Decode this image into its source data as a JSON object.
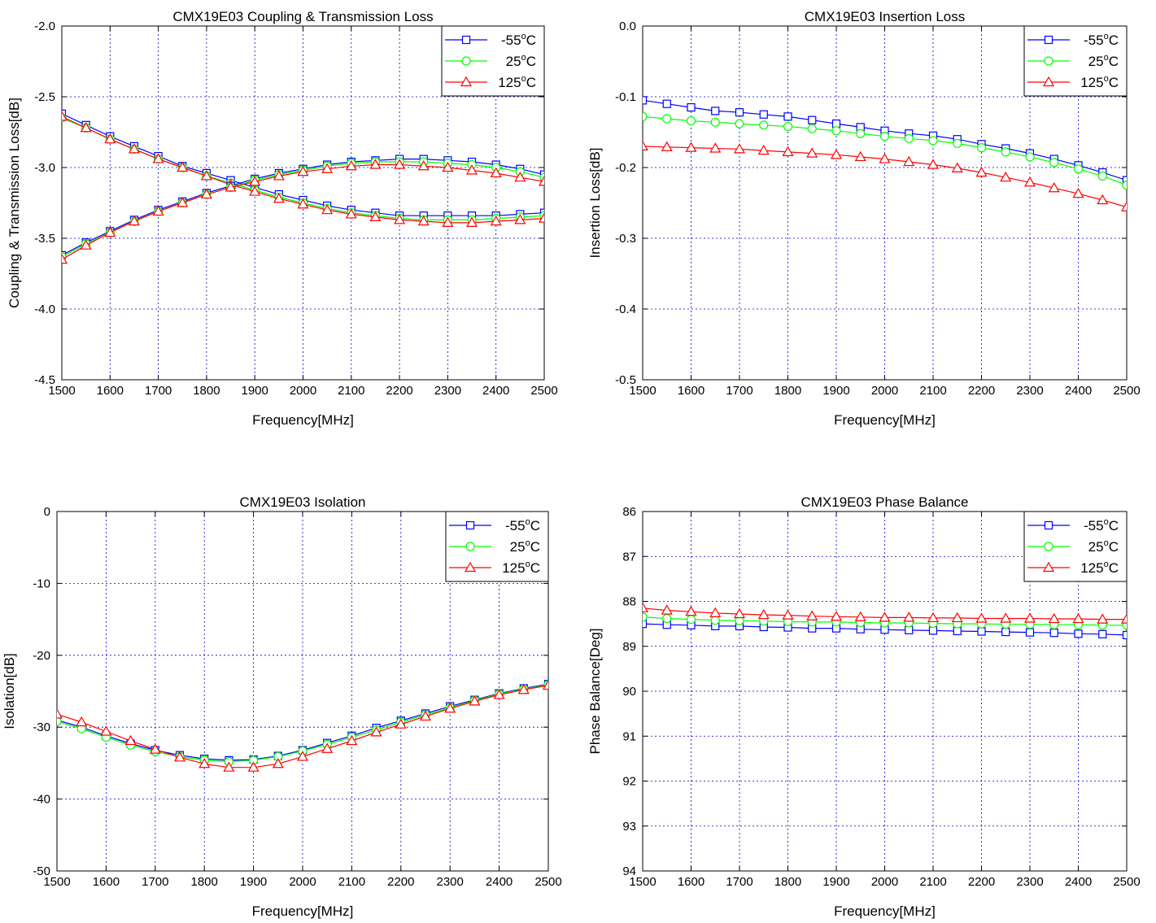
{
  "chart_data": [
    {
      "type": "line",
      "title": "CMX19E03 Coupling & Transmission Loss",
      "xlabel": "Frequency[MHz]",
      "ylabel": "Coupling & Transmission Loss[dB]",
      "xlim": [
        1500,
        2500
      ],
      "ylim": [
        -4.5,
        -2.0
      ],
      "x_ticks": [
        1500,
        1600,
        1700,
        1800,
        1900,
        2000,
        2100,
        2200,
        2300,
        2400,
        2500
      ],
      "y_ticks": [
        -2.0,
        -2.5,
        -3.0,
        -3.5,
        -4.0,
        -4.5
      ],
      "y_tick_labels": [
        "-2.0",
        "-2.5",
        "-3.0",
        "-3.5",
        "-4.0",
        "-4.5"
      ],
      "grid": true,
      "legend_position": "top-right",
      "x": [
        1500,
        1550,
        1600,
        1650,
        1700,
        1750,
        1800,
        1850,
        1900,
        1950,
        2000,
        2050,
        2100,
        2150,
        2200,
        2250,
        2300,
        2350,
        2400,
        2450,
        2500
      ],
      "series": [
        {
          "name": "-55°C",
          "label_main": "-55",
          "color": "#0000ff",
          "marker": "square",
          "curve": "coupling",
          "values": [
            -2.62,
            -2.7,
            -2.78,
            -2.85,
            -2.92,
            -2.99,
            -3.04,
            -3.09,
            -3.14,
            -3.19,
            -3.23,
            -3.27,
            -3.3,
            -3.32,
            -3.34,
            -3.34,
            -3.34,
            -3.34,
            -3.34,
            -3.33,
            -3.32
          ]
        },
        {
          "name": "25°C",
          "label_main": "25",
          "color": "#00ff00",
          "marker": "circle",
          "curve": "coupling",
          "values": [
            -2.65,
            -2.72,
            -2.8,
            -2.87,
            -2.94,
            -3.0,
            -3.06,
            -3.11,
            -3.16,
            -3.21,
            -3.25,
            -3.29,
            -3.32,
            -3.34,
            -3.36,
            -3.37,
            -3.37,
            -3.37,
            -3.36,
            -3.35,
            -3.34
          ]
        },
        {
          "name": "125°C",
          "label_main": "125",
          "color": "#ff0000",
          "marker": "triangle",
          "curve": "coupling",
          "values": [
            -2.64,
            -2.72,
            -2.8,
            -2.87,
            -2.94,
            -3.0,
            -3.06,
            -3.12,
            -3.17,
            -3.22,
            -3.26,
            -3.3,
            -3.33,
            -3.35,
            -3.37,
            -3.38,
            -3.39,
            -3.39,
            -3.38,
            -3.37,
            -3.36
          ]
        },
        {
          "name": "-55°C",
          "curve": "transmission",
          "color": "#0000ff",
          "marker": "square",
          "values": [
            -3.62,
            -3.53,
            -3.45,
            -3.37,
            -3.3,
            -3.24,
            -3.18,
            -3.13,
            -3.08,
            -3.04,
            -3.01,
            -2.98,
            -2.96,
            -2.95,
            -2.94,
            -2.94,
            -2.95,
            -2.96,
            -2.98,
            -3.01,
            -3.05
          ]
        },
        {
          "name": "25°C",
          "curve": "transmission",
          "color": "#00ff00",
          "marker": "circle",
          "values": [
            -3.63,
            -3.54,
            -3.46,
            -3.38,
            -3.31,
            -3.25,
            -3.19,
            -3.14,
            -3.09,
            -3.05,
            -3.02,
            -2.99,
            -2.97,
            -2.96,
            -2.96,
            -2.96,
            -2.97,
            -2.98,
            -3.0,
            -3.03,
            -3.07
          ]
        },
        {
          "name": "125°C",
          "curve": "transmission",
          "color": "#ff0000",
          "marker": "triangle",
          "values": [
            -3.65,
            -3.55,
            -3.46,
            -3.38,
            -3.31,
            -3.25,
            -3.19,
            -3.14,
            -3.1,
            -3.06,
            -3.03,
            -3.01,
            -2.99,
            -2.98,
            -2.98,
            -2.99,
            -3.0,
            -3.02,
            -3.04,
            -3.07,
            -3.1
          ]
        }
      ]
    },
    {
      "type": "line",
      "title": "CMX19E03 Insertion Loss",
      "xlabel": "Frequency[MHz]",
      "ylabel": "Insertion Loss[dB]",
      "xlim": [
        1500,
        2500
      ],
      "ylim": [
        -0.5,
        0.0
      ],
      "x_ticks": [
        1500,
        1600,
        1700,
        1800,
        1900,
        2000,
        2100,
        2200,
        2300,
        2400,
        2500
      ],
      "y_ticks": [
        0.0,
        -0.1,
        -0.2,
        -0.3,
        -0.4,
        -0.5
      ],
      "y_tick_labels": [
        "0.0",
        "-0.1",
        "-0.2",
        "-0.3",
        "-0.4",
        "-0.5"
      ],
      "grid": true,
      "legend_position": "top-right",
      "x": [
        1500,
        1550,
        1600,
        1650,
        1700,
        1750,
        1800,
        1850,
        1900,
        1950,
        2000,
        2050,
        2100,
        2150,
        2200,
        2250,
        2300,
        2350,
        2400,
        2450,
        2500
      ],
      "series": [
        {
          "name": "-55°C",
          "label_main": "-55",
          "color": "#0000ff",
          "marker": "square",
          "values": [
            -0.105,
            -0.11,
            -0.115,
            -0.12,
            -0.122,
            -0.125,
            -0.128,
            -0.133,
            -0.138,
            -0.143,
            -0.148,
            -0.152,
            -0.155,
            -0.16,
            -0.167,
            -0.173,
            -0.18,
            -0.188,
            -0.197,
            -0.207,
            -0.218
          ]
        },
        {
          "name": "25°C",
          "label_main": "25",
          "color": "#00ff00",
          "marker": "circle",
          "values": [
            -0.128,
            -0.131,
            -0.134,
            -0.136,
            -0.138,
            -0.14,
            -0.142,
            -0.145,
            -0.148,
            -0.152,
            -0.156,
            -0.159,
            -0.162,
            -0.166,
            -0.172,
            -0.178,
            -0.185,
            -0.193,
            -0.202,
            -0.212,
            -0.225
          ]
        },
        {
          "name": "125°C",
          "label_main": "125",
          "color": "#ff0000",
          "marker": "triangle",
          "values": [
            -0.17,
            -0.171,
            -0.172,
            -0.173,
            -0.174,
            -0.176,
            -0.178,
            -0.18,
            -0.182,
            -0.185,
            -0.188,
            -0.192,
            -0.196,
            -0.201,
            -0.207,
            -0.214,
            -0.221,
            -0.229,
            -0.237,
            -0.246,
            -0.256
          ]
        }
      ]
    },
    {
      "type": "line",
      "title": "CMX19E03 Isolation",
      "xlabel": "Frequency[MHz]",
      "ylabel": "Isolation[dB]",
      "xlim": [
        1500,
        2500
      ],
      "ylim": [
        -50,
        0
      ],
      "x_ticks": [
        1500,
        1600,
        1700,
        1800,
        1900,
        2000,
        2100,
        2200,
        2300,
        2400,
        2500
      ],
      "y_ticks": [
        0,
        -10,
        -20,
        -30,
        -40,
        -50
      ],
      "y_tick_labels": [
        "0",
        "-10",
        "-20",
        "-30",
        "-40",
        "-50"
      ],
      "grid": true,
      "legend_position": "top-right",
      "x": [
        1500,
        1550,
        1600,
        1650,
        1700,
        1750,
        1800,
        1850,
        1900,
        1950,
        2000,
        2050,
        2100,
        2150,
        2200,
        2250,
        2300,
        2350,
        2400,
        2450,
        2500
      ],
      "series": [
        {
          "name": "-55°C",
          "label_main": "-55",
          "color": "#0000ff",
          "marker": "square",
          "values": [
            -29.0,
            -30.0,
            -31.2,
            -32.3,
            -33.2,
            -33.9,
            -34.4,
            -34.6,
            -34.5,
            -34.0,
            -33.2,
            -32.2,
            -31.2,
            -30.1,
            -29.1,
            -28.1,
            -27.1,
            -26.2,
            -25.3,
            -24.6,
            -24.0
          ]
        },
        {
          "name": "25°C",
          "label_main": "25",
          "color": "#00ff00",
          "marker": "circle",
          "values": [
            -29.2,
            -30.2,
            -31.4,
            -32.5,
            -33.4,
            -34.1,
            -34.6,
            -34.8,
            -34.6,
            -34.1,
            -33.3,
            -32.4,
            -31.4,
            -30.4,
            -29.3,
            -28.3,
            -27.3,
            -26.3,
            -25.4,
            -24.7,
            -24.1
          ]
        },
        {
          "name": "125°C",
          "label_main": "125",
          "color": "#ff0000",
          "marker": "triangle",
          "values": [
            -28.2,
            -29.3,
            -30.6,
            -31.9,
            -33.1,
            -34.2,
            -35.1,
            -35.6,
            -35.6,
            -35.1,
            -34.1,
            -33.0,
            -31.9,
            -30.7,
            -29.6,
            -28.5,
            -27.4,
            -26.4,
            -25.5,
            -24.8,
            -24.2
          ]
        }
      ]
    },
    {
      "type": "line",
      "title": "CMX19E03 Phase Balance",
      "xlabel": "Frequency[MHz]",
      "ylabel": "Phase Balance[Deg]",
      "xlim": [
        1500,
        2500
      ],
      "ylim": [
        94,
        86
      ],
      "x_ticks": [
        1500,
        1600,
        1700,
        1800,
        1900,
        2000,
        2100,
        2200,
        2300,
        2400,
        2500
      ],
      "y_ticks": [
        86,
        87,
        88,
        89,
        90,
        91,
        92,
        93,
        94
      ],
      "y_tick_labels": [
        "86",
        "87",
        "88",
        "89",
        "90",
        "91",
        "92",
        "93",
        "94"
      ],
      "grid": true,
      "legend_position": "top-right",
      "x": [
        1500,
        1550,
        1600,
        1650,
        1700,
        1750,
        1800,
        1850,
        1900,
        1950,
        2000,
        2050,
        2100,
        2150,
        2200,
        2250,
        2300,
        2350,
        2400,
        2450,
        2500
      ],
      "series": [
        {
          "name": "-55°C",
          "label_main": "-55",
          "color": "#0000ff",
          "marker": "square",
          "values": [
            88.5,
            88.52,
            88.53,
            88.55,
            88.55,
            88.57,
            88.58,
            88.6,
            88.6,
            88.62,
            88.63,
            88.64,
            88.65,
            88.66,
            88.67,
            88.68,
            88.69,
            88.7,
            88.72,
            88.73,
            88.75
          ]
        },
        {
          "name": "25°C",
          "label_main": "25",
          "color": "#00ff00",
          "marker": "circle",
          "values": [
            88.35,
            88.38,
            88.4,
            88.42,
            88.43,
            88.44,
            88.45,
            88.46,
            88.46,
            88.47,
            88.48,
            88.48,
            88.49,
            88.5,
            88.5,
            88.51,
            88.51,
            88.52,
            88.52,
            88.53,
            88.53
          ]
        },
        {
          "name": "125°C",
          "label_main": "125",
          "color": "#ff0000",
          "marker": "triangle",
          "values": [
            88.15,
            88.2,
            88.23,
            88.26,
            88.28,
            88.3,
            88.31,
            88.33,
            88.34,
            88.35,
            88.36,
            88.36,
            88.37,
            88.37,
            88.38,
            88.38,
            88.38,
            88.39,
            88.39,
            88.4,
            88.4
          ]
        }
      ]
    }
  ]
}
